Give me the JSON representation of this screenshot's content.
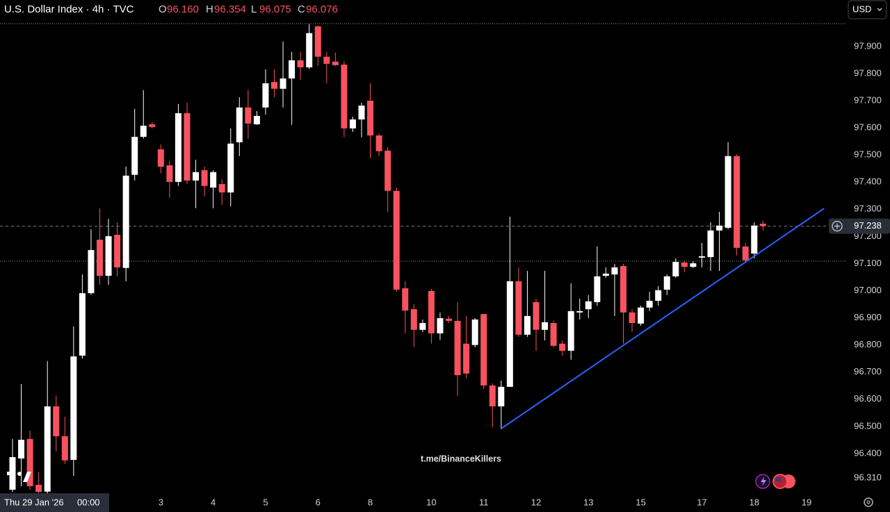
{
  "chart_data": {
    "type": "candlestick",
    "title": "U.S. Dollar Index · 4h · TVC",
    "ohlc_header": [
      {
        "key": "O",
        "value": "96.160"
      },
      {
        "key": "H",
        "value": "96.354"
      },
      {
        "key": "L",
        "value": "96.075"
      },
      {
        "key": "C",
        "value": "96.076"
      }
    ],
    "currency": "USD",
    "watermark": "t.me/BinanceKillers",
    "crosshair_label": {
      "date": "Thu 29 Jan '26",
      "time": "00:00"
    },
    "categories": [
      null,
      null,
      null,
      null,
      null,
      null,
      null,
      null,
      null,
      null,
      null,
      null,
      null,
      null,
      null,
      null,
      null,
      "3",
      null,
      null,
      null,
      null,
      null,
      "4",
      null,
      null,
      null,
      null,
      null,
      "5",
      null,
      null,
      null,
      null,
      null,
      "6",
      null,
      null,
      null,
      null,
      null,
      "8",
      null,
      null,
      null,
      null,
      null,
      null,
      "10",
      null,
      null,
      null,
      null,
      null,
      "11",
      null,
      null,
      null,
      null,
      null,
      "12",
      null,
      null,
      null,
      null,
      null,
      "13",
      null,
      null,
      null,
      null,
      null,
      "15",
      null,
      null,
      null,
      null,
      null,
      null,
      "17",
      null,
      null,
      null,
      null,
      null,
      "18",
      null,
      null,
      null,
      null,
      null,
      "19",
      null,
      null,
      null,
      null
    ],
    "open": [
      96.267,
      96.382,
      96.454,
      96.285,
      96.26,
      96.574,
      96.464,
      96.377,
      96.761,
      96.991,
      97.188,
      97.055,
      97.206,
      97.084,
      97.427,
      97.567,
      97.613,
      97.521,
      97.462,
      97.401,
      97.654,
      97.406,
      97.444,
      97.38,
      97.393,
      97.362,
      97.547,
      97.675,
      97.613,
      97.675,
      97.769,
      97.744,
      97.782,
      97.849,
      97.823,
      97.974,
      97.862,
      97.844,
      97.833,
      97.598,
      97.631,
      97.7,
      97.572,
      97.516,
      97.368,
      97.009,
      96.932,
      96.856,
      96.999,
      96.843,
      96.897,
      96.889,
      96.805,
      96.8,
      96.914,
      96.651,
      96.574,
      96.646,
      97.035,
      96.838,
      96.958,
      96.856,
      96.881,
      96.805,
      96.779,
      96.92,
      96.932,
      96.958,
      97.055,
      97.06,
      97.091,
      96.92,
      96.879,
      96.938,
      96.963,
      97.004,
      97.053,
      97.104,
      97.088,
      97.122,
      97.124,
      97.222,
      97.232,
      97.496,
      97.163,
      97.137,
      97.247,
      null,
      null,
      null,
      null,
      null,
      null,
      null,
      null,
      null
    ],
    "high": [
      96.454,
      96.656,
      96.485,
      96.331,
      96.741,
      96.613,
      96.536,
      96.869,
      97.06,
      97.227,
      97.304,
      97.265,
      97.252,
      97.457,
      97.67,
      97.739,
      97.621,
      97.539,
      97.478,
      97.688,
      97.693,
      97.483,
      97.457,
      97.444,
      97.411,
      97.598,
      97.713,
      97.739,
      97.662,
      97.816,
      97.816,
      97.918,
      97.88,
      97.88,
      97.982,
      97.978,
      97.88,
      97.877,
      97.846,
      97.641,
      97.693,
      97.764,
      97.58,
      97.529,
      97.38,
      97.035,
      96.95,
      96.894,
      97.007,
      96.92,
      96.907,
      96.958,
      96.907,
      96.899,
      96.914,
      96.659,
      96.669,
      97.273,
      97.086,
      97.073,
      96.971,
      97.073,
      96.889,
      96.817,
      97.027,
      96.971,
      96.984,
      97.163,
      97.086,
      97.099,
      97.099,
      96.932,
      96.945,
      96.996,
      97.017,
      97.06,
      97.119,
      97.109,
      97.109,
      97.176,
      97.252,
      97.291,
      97.547,
      97.503,
      97.176,
      97.252,
      97.258,
      null,
      null,
      null,
      null,
      null,
      null,
      null,
      null,
      null
    ],
    "low": [
      96.259,
      96.28,
      96.267,
      96.25,
      96.24,
      96.408,
      96.362,
      96.318,
      96.75,
      96.984,
      97.022,
      97.022,
      97.053,
      97.035,
      97.406,
      97.56,
      97.598,
      97.432,
      97.342,
      97.386,
      97.393,
      97.304,
      97.347,
      97.304,
      97.316,
      97.311,
      97.496,
      97.56,
      97.611,
      97.649,
      97.713,
      97.675,
      97.611,
      97.777,
      97.816,
      97.828,
      97.764,
      97.828,
      97.565,
      97.585,
      97.565,
      97.488,
      97.496,
      97.291,
      96.996,
      96.843,
      96.792,
      96.848,
      96.805,
      96.818,
      96.882,
      96.613,
      96.677,
      96.792,
      96.638,
      96.497,
      96.49,
      96.646,
      96.83,
      96.83,
      96.779,
      96.817,
      96.792,
      96.761,
      96.746,
      96.894,
      96.899,
      96.945,
      97.048,
      96.907,
      96.805,
      96.848,
      96.871,
      96.925,
      96.945,
      96.984,
      97.048,
      97.068,
      97.083,
      97.086,
      97.073,
      97.073,
      97.227,
      97.13,
      97.104,
      97.119,
      97.222,
      null,
      null,
      null,
      null,
      null,
      null,
      null,
      null,
      null
    ],
    "close": [
      96.387,
      96.451,
      96.28,
      96.259,
      96.574,
      96.464,
      96.375,
      96.758,
      96.991,
      97.15,
      97.055,
      97.201,
      97.086,
      97.424,
      97.567,
      97.608,
      97.603,
      97.457,
      97.401,
      97.654,
      97.406,
      97.437,
      97.386,
      97.437,
      97.362,
      97.542,
      97.675,
      97.616,
      97.644,
      97.764,
      97.744,
      97.782,
      97.849,
      97.823,
      97.949,
      97.862,
      97.836,
      97.831,
      97.598,
      97.631,
      97.682,
      97.572,
      97.514,
      97.368,
      97.004,
      96.927,
      96.856,
      96.881,
      96.843,
      96.899,
      96.889,
      96.689,
      96.695,
      96.894,
      96.651,
      96.574,
      96.646,
      97.035,
      96.838,
      96.907,
      96.856,
      96.884,
      96.797,
      96.779,
      96.925,
      96.925,
      96.961,
      97.053,
      97.063,
      97.086,
      96.92,
      96.881,
      96.938,
      96.963,
      97.002,
      97.053,
      97.106,
      97.088,
      97.101,
      97.127,
      97.222,
      97.24,
      97.496,
      97.158,
      97.112,
      97.24,
      97.238,
      null,
      null,
      null,
      null,
      null,
      null,
      null,
      null,
      null
    ],
    "up_color": "#ffffff",
    "down_color": "#f7525f",
    "ylim": [
      96.254,
      98.071
    ],
    "yticks": [
      {
        "value": 96.31,
        "label": "96.310"
      },
      {
        "value": 96.4,
        "label": "96.400"
      },
      {
        "value": 96.5,
        "label": "96.500"
      },
      {
        "value": 96.6,
        "label": "96.600"
      },
      {
        "value": 96.7,
        "label": "96.700"
      },
      {
        "value": 96.8,
        "label": "96.800"
      },
      {
        "value": 96.9,
        "label": "96.900"
      },
      {
        "value": 97.0,
        "label": "97.000"
      },
      {
        "value": 97.1,
        "label": "97.100"
      },
      {
        "value": 97.2,
        "label": "97.200"
      },
      {
        "value": 97.3,
        "label": "97.300"
      },
      {
        "value": 97.4,
        "label": "97.400"
      },
      {
        "value": 97.5,
        "label": "97.500"
      },
      {
        "value": 97.6,
        "label": "97.600"
      },
      {
        "value": 97.7,
        "label": "97.700"
      },
      {
        "value": 97.8,
        "label": "97.800"
      },
      {
        "value": 97.9,
        "label": "97.900"
      }
    ],
    "last_price": 97.238,
    "reference_lines": [
      97.984,
      97.109
    ],
    "trendline": {
      "x": [
        56,
        93
      ],
      "y": [
        96.492,
        97.303
      ],
      "color": "#2962ff"
    }
  }
}
